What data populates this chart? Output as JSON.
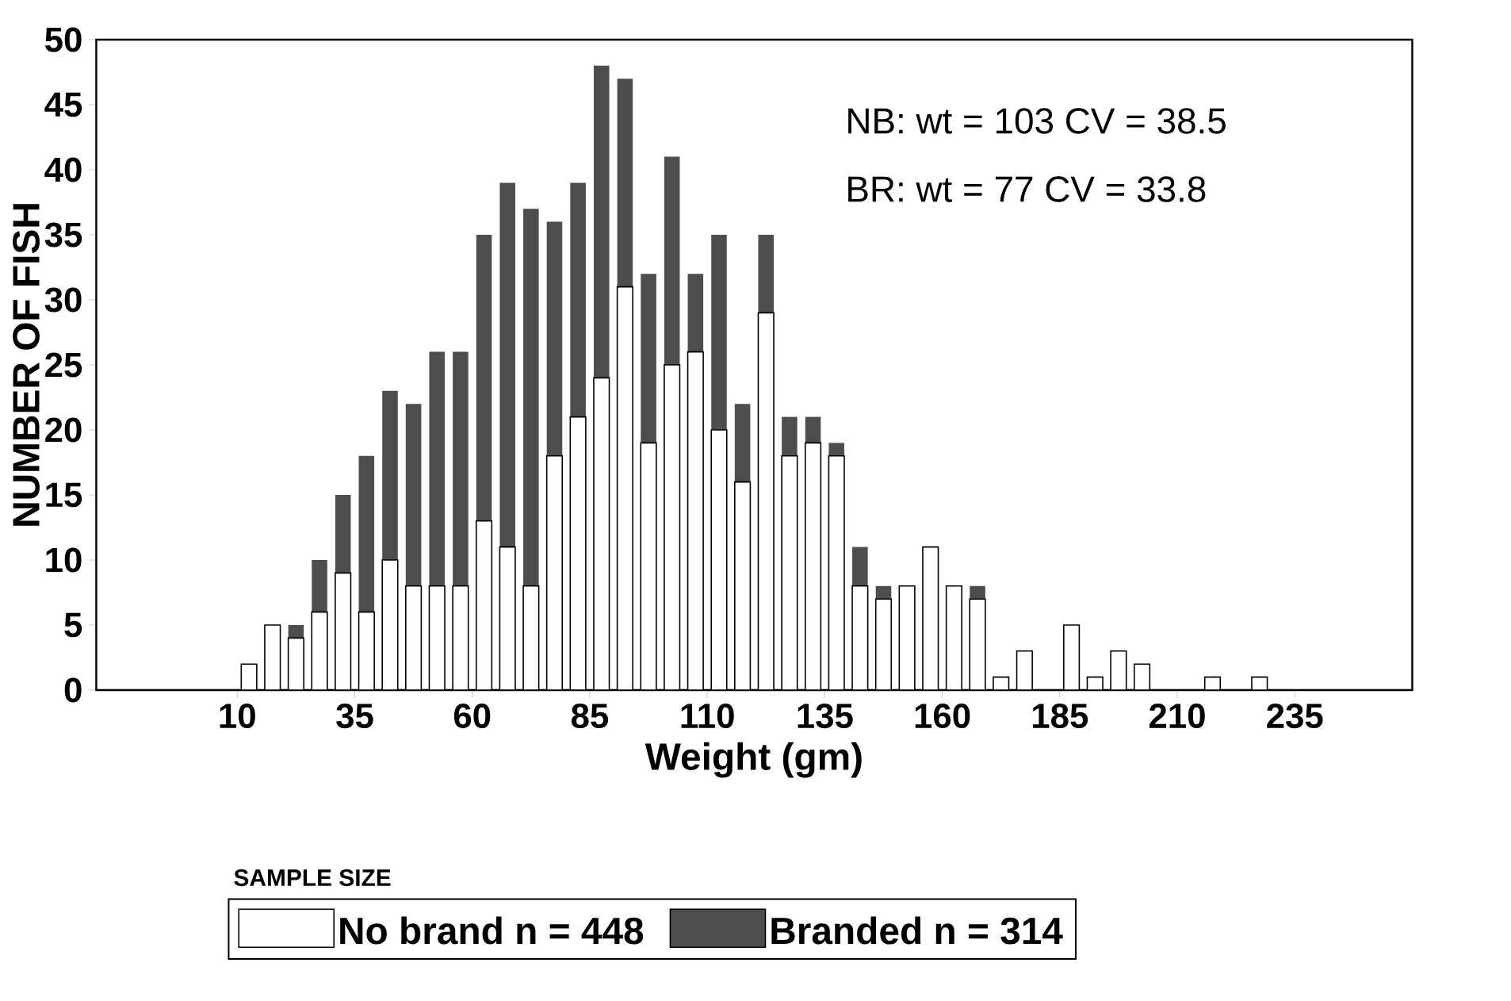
{
  "chart_data": {
    "type": "bar",
    "stacked": true,
    "xlabel": "Weight (gm)",
    "ylabel": "NUMBER OF FISH",
    "legend_title": "SAMPLE SIZE",
    "x": [
      12.5,
      17.5,
      22.5,
      27.5,
      32.5,
      37.5,
      42.5,
      47.5,
      52.5,
      57.5,
      62.5,
      67.5,
      72.5,
      77.5,
      82.5,
      87.5,
      92.5,
      97.5,
      102.5,
      107.5,
      112.5,
      117.5,
      122.5,
      127.5,
      132.5,
      137.5,
      142.5,
      147.5,
      152.5,
      157.5,
      162.5,
      167.5,
      172.5,
      177.5,
      182.5,
      187.5,
      192.5,
      197.5,
      202.5,
      207.5,
      212.5,
      217.5,
      222.5,
      227.5
    ],
    "series": [
      {
        "name": "No brand  n = 448",
        "color": "#ffffff",
        "values": [
          2,
          5,
          4,
          6,
          9,
          6,
          10,
          8,
          8,
          8,
          13,
          11,
          8,
          18,
          21,
          24,
          31,
          19,
          25,
          26,
          20,
          16,
          29,
          18,
          19,
          18,
          8,
          7,
          8,
          11,
          8,
          7,
          1,
          3,
          0,
          5,
          1,
          3,
          2,
          0,
          0,
          1,
          0,
          1
        ]
      },
      {
        "name": "Branded  n = 314",
        "color": "#4d4d4d",
        "values": [
          0,
          0,
          1,
          4,
          6,
          12,
          13,
          14,
          18,
          18,
          22,
          28,
          29,
          18,
          18,
          24,
          16,
          13,
          16,
          6,
          15,
          6,
          6,
          3,
          2,
          1,
          3,
          1,
          0,
          0,
          0,
          1,
          0,
          0,
          0,
          0,
          0,
          0,
          0,
          0,
          0,
          0,
          0,
          0
        ]
      }
    ],
    "xlim": [
      -20,
      260
    ],
    "xticks": [
      10,
      35,
      60,
      85,
      110,
      135,
      160,
      185,
      210,
      235
    ],
    "ylim": [
      0,
      50
    ],
    "yticks": [
      0,
      5,
      10,
      15,
      20,
      25,
      30,
      35,
      40,
      45,
      50
    ],
    "annotations": [
      "NB: wt = 103 CV = 38.5",
      "BR: wt = 77   CV = 33.8"
    ],
    "legend": "bottom",
    "grid": false
  }
}
